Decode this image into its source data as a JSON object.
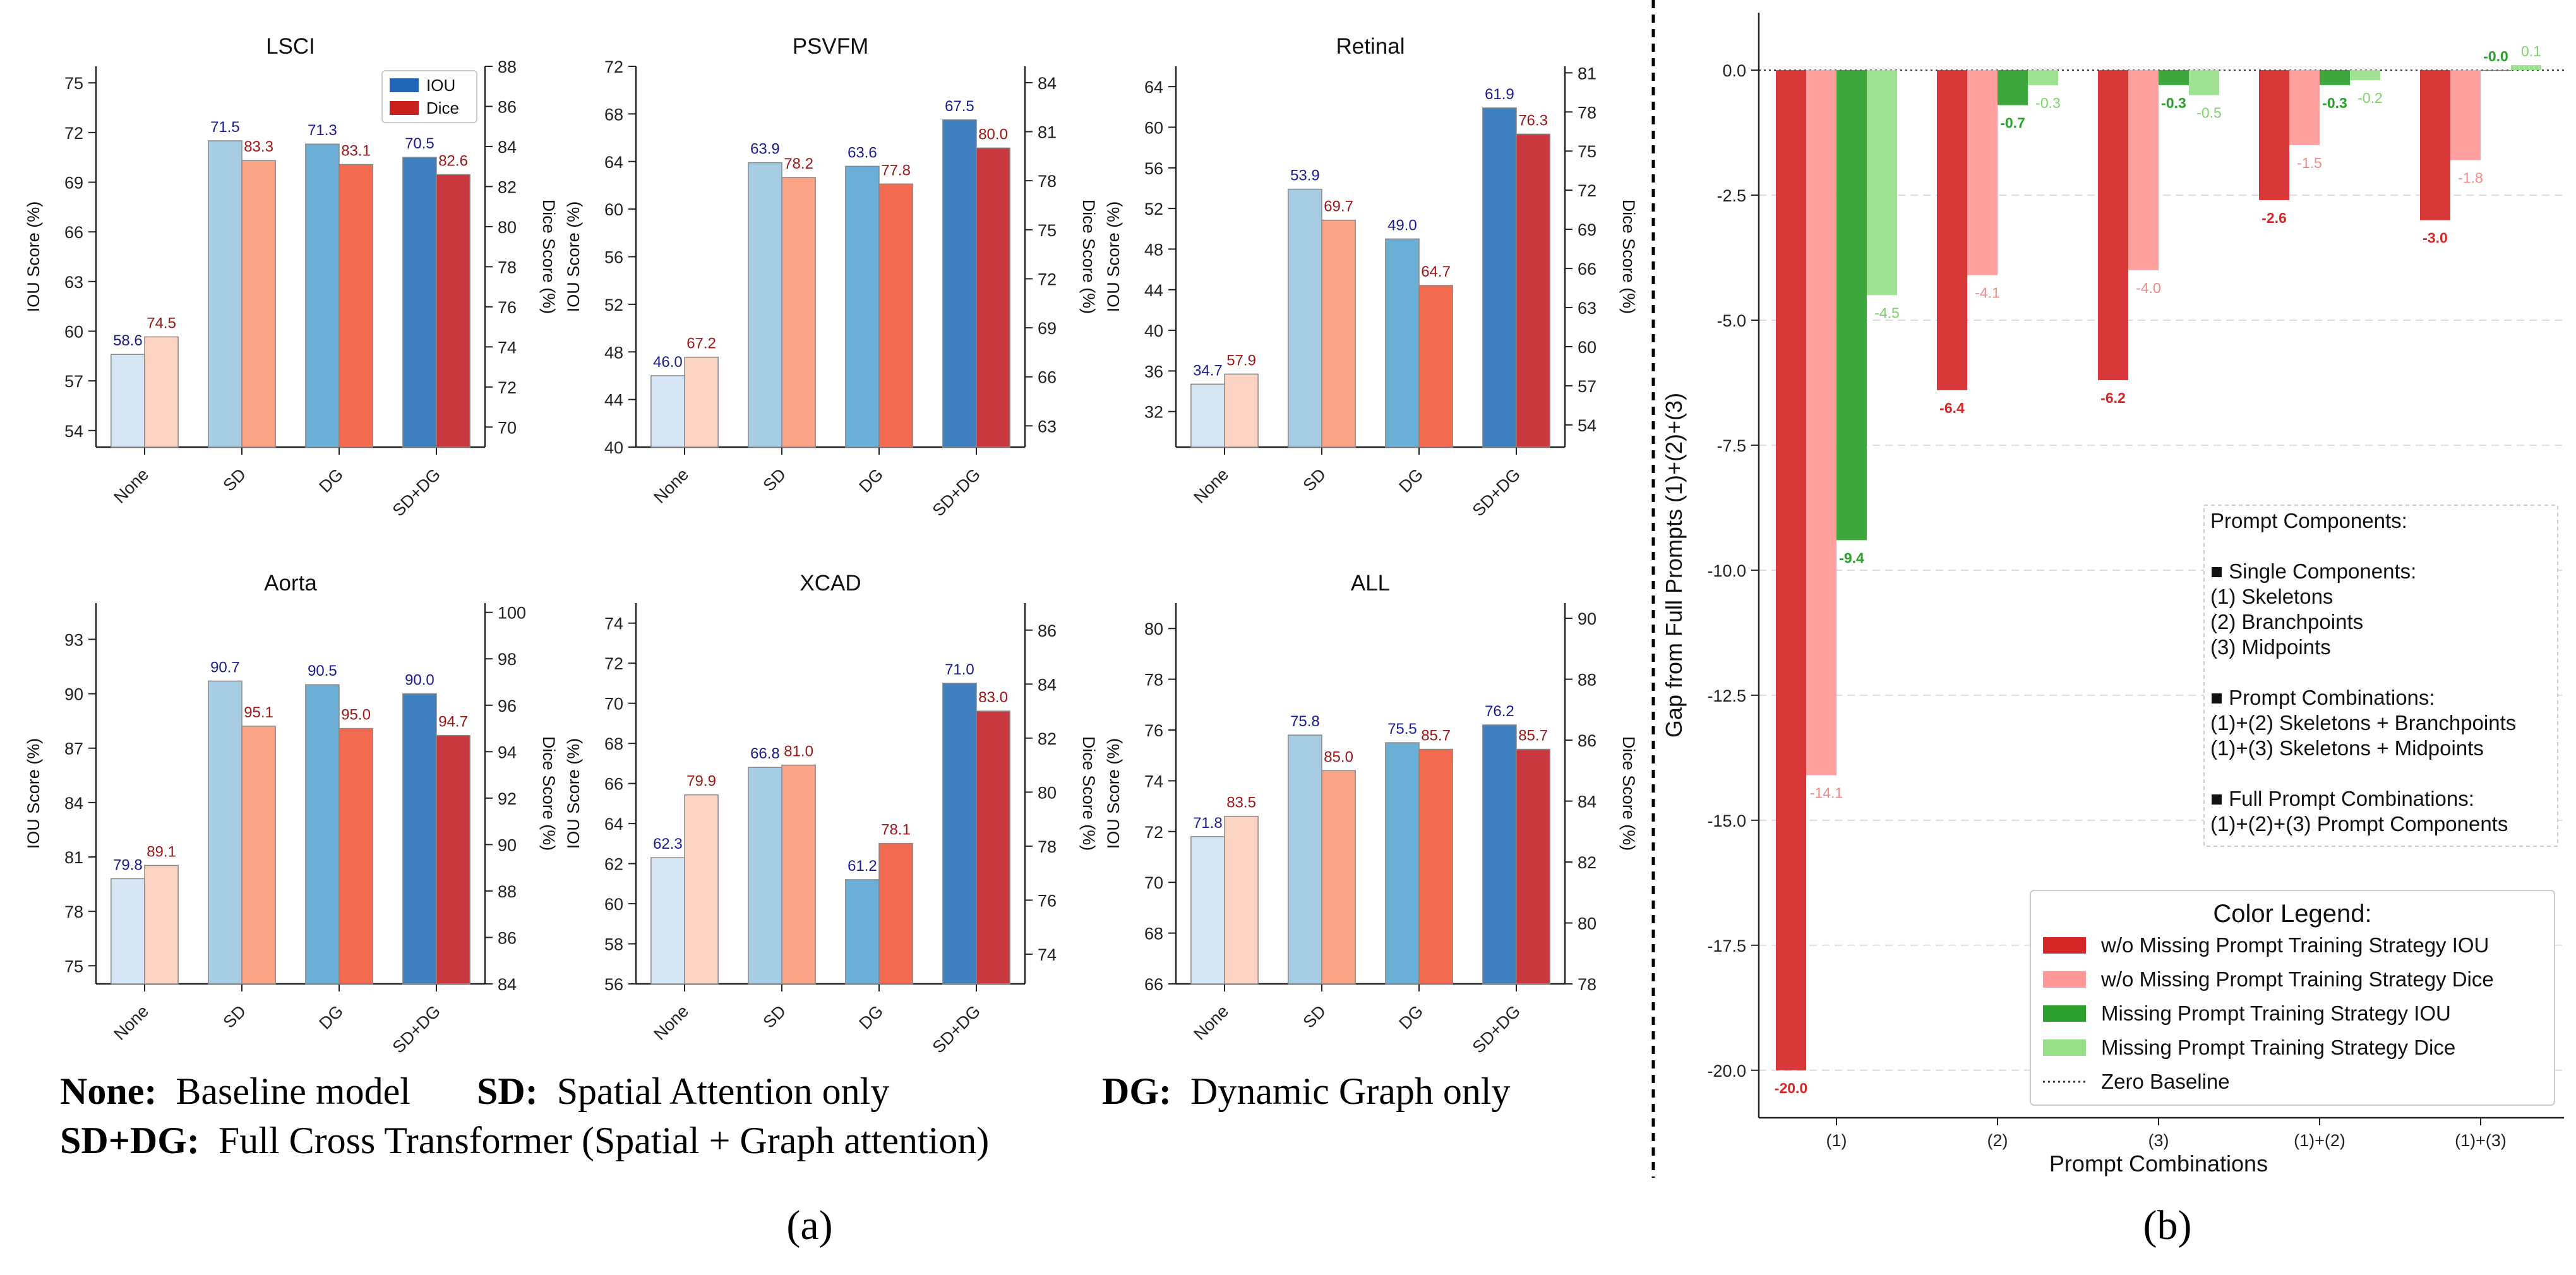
{
  "figure_labels": {
    "a": "(a)",
    "b": "(b)"
  },
  "caption": {
    "none": {
      "key": "None:",
      "desc": "Baseline model"
    },
    "sd": {
      "key": "SD:",
      "desc": "Spatial Attention only"
    },
    "dg": {
      "key": "DG:",
      "desc": "Dynamic Graph only"
    },
    "sddg": {
      "key": "SD+DG:",
      "desc": "Full Cross Transformer (Spatial + Graph attention)"
    }
  },
  "colors": {
    "iou": [
      "#d6e6f4",
      "#a6cde3",
      "#6baed6",
      "#3f7fbf"
    ],
    "dice": [
      "#fdd3c3",
      "#fca488",
      "#f26a50",
      "#c9373f"
    ],
    "iou_label": "#1b1b8f",
    "dice_label": "#9c1616",
    "gap_iou_a": "#d62728",
    "gap_dice_a": "#ff9896",
    "gap_iou_b": "#2ca02c",
    "gap_dice_b": "#98df8a",
    "legend_iou": "#1f67b4",
    "legend_dice": "#c81e1e"
  },
  "chart_data": [
    {
      "type": "bar",
      "title": "LSCI",
      "categories": [
        "None",
        "SD",
        "DG",
        "SD+DG"
      ],
      "ylabel": "IOU Score (%)",
      "ylabel_right": "Dice Score (%)",
      "ylim": [
        53,
        76
      ],
      "yticks": [
        "54",
        "57",
        "60",
        "63",
        "66",
        "69",
        "72",
        "75"
      ],
      "ylim_right": [
        69,
        88
      ],
      "yticks_right": [
        "70",
        "72",
        "74",
        "76",
        "78",
        "80",
        "82",
        "84",
        "86",
        "88"
      ],
      "series": [
        {
          "name": "IOU",
          "axis": "left",
          "values": [
            58.6,
            71.5,
            71.3,
            70.5
          ],
          "labels": [
            "58.6",
            "71.5",
            "71.3",
            "70.5"
          ]
        },
        {
          "name": "Dice",
          "axis": "right",
          "values": [
            74.5,
            83.3,
            83.1,
            82.6
          ],
          "labels": [
            "74.5",
            "83.3",
            "83.1",
            "82.6"
          ]
        }
      ],
      "legend": {
        "position": "top-right",
        "entries": [
          "IOU",
          "Dice"
        ]
      }
    },
    {
      "type": "bar",
      "title": "PSVFM",
      "categories": [
        "None",
        "SD",
        "DG",
        "SD+DG"
      ],
      "ylabel": "IOU Score (%)",
      "ylabel_right": "Dice Score (%)",
      "ylim": [
        40,
        72
      ],
      "yticks": [
        "40",
        "44",
        "48",
        "52",
        "56",
        "60",
        "64",
        "68",
        "72"
      ],
      "ylim_right": [
        61.7,
        85
      ],
      "yticks_right": [
        "63",
        "66",
        "69",
        "72",
        "75",
        "78",
        "81",
        "84"
      ],
      "series": [
        {
          "name": "IOU",
          "axis": "left",
          "values": [
            46.0,
            63.9,
            63.6,
            67.5
          ],
          "labels": [
            "46.0",
            "63.9",
            "63.6",
            "67.5"
          ]
        },
        {
          "name": "Dice",
          "axis": "right",
          "values": [
            67.2,
            78.2,
            77.8,
            80.0
          ],
          "labels": [
            "67.2",
            "78.2",
            "77.8",
            "80.0"
          ]
        }
      ]
    },
    {
      "type": "bar",
      "title": "Retinal",
      "categories": [
        "None",
        "SD",
        "DG",
        "SD+DG"
      ],
      "ylabel": "IOU Score (%)",
      "ylabel_right": "Dice Score (%)",
      "ylim": [
        28.5,
        66
      ],
      "yticks": [
        "32",
        "36",
        "40",
        "44",
        "48",
        "52",
        "56",
        "60",
        "64"
      ],
      "ylim_right": [
        52.3,
        81.5
      ],
      "yticks_right": [
        "54",
        "57",
        "60",
        "63",
        "66",
        "69",
        "72",
        "75",
        "78",
        "81"
      ],
      "series": [
        {
          "name": "IOU",
          "axis": "left",
          "values": [
            34.7,
            53.9,
            49.0,
            61.9
          ],
          "labels": [
            "34.7",
            "53.9",
            "49.0",
            "61.9"
          ]
        },
        {
          "name": "Dice",
          "axis": "right",
          "values": [
            57.9,
            69.7,
            64.7,
            76.3
          ],
          "labels": [
            "57.9",
            "69.7",
            "64.7",
            "76.3"
          ]
        }
      ]
    },
    {
      "type": "bar",
      "title": "Aorta",
      "categories": [
        "None",
        "SD",
        "DG",
        "SD+DG"
      ],
      "ylabel": "IOU Score (%)",
      "ylabel_right": "Dice Score (%)",
      "ylim": [
        74,
        95
      ],
      "yticks": [
        "75",
        "78",
        "81",
        "84",
        "87",
        "90",
        "93"
      ],
      "ylim_right": [
        84,
        100.4
      ],
      "yticks_right": [
        "84",
        "86",
        "88",
        "90",
        "92",
        "94",
        "96",
        "98",
        "100"
      ],
      "series": [
        {
          "name": "IOU",
          "axis": "left",
          "values": [
            79.8,
            90.7,
            90.5,
            90.0
          ],
          "labels": [
            "79.8",
            "90.7",
            "90.5",
            "90.0"
          ]
        },
        {
          "name": "Dice",
          "axis": "right",
          "values": [
            89.1,
            95.1,
            95.0,
            94.7
          ],
          "labels": [
            "89.1",
            "95.1",
            "95.0",
            "94.7"
          ]
        }
      ]
    },
    {
      "type": "bar",
      "title": "XCAD",
      "categories": [
        "None",
        "SD",
        "DG",
        "SD+DG"
      ],
      "ylabel": "IOU Score (%)",
      "ylabel_right": "Dice Score (%)",
      "ylim": [
        56,
        75
      ],
      "yticks": [
        "56",
        "58",
        "60",
        "62",
        "64",
        "66",
        "68",
        "70",
        "72",
        "74"
      ],
      "ylim_right": [
        72.9,
        87
      ],
      "yticks_right": [
        "74",
        "76",
        "78",
        "80",
        "82",
        "84",
        "86"
      ],
      "series": [
        {
          "name": "IOU",
          "axis": "left",
          "values": [
            62.3,
            66.8,
            61.2,
            71.0
          ],
          "labels": [
            "62.3",
            "66.8",
            "61.2",
            "71.0"
          ]
        },
        {
          "name": "Dice",
          "axis": "right",
          "values": [
            79.9,
            81.0,
            78.1,
            83.0
          ],
          "labels": [
            "79.9",
            "81.0",
            "78.1",
            "83.0"
          ]
        }
      ]
    },
    {
      "type": "bar",
      "title": "ALL",
      "categories": [
        "None",
        "SD",
        "DG",
        "SD+DG"
      ],
      "ylabel": "IOU Score (%)",
      "ylabel_right": "Dice Score (%)",
      "ylim": [
        66,
        81
      ],
      "yticks": [
        "66",
        "68",
        "70",
        "72",
        "74",
        "76",
        "78",
        "80"
      ],
      "ylim_right": [
        78,
        90.5
      ],
      "yticks_right": [
        "78",
        "80",
        "82",
        "84",
        "86",
        "88",
        "90"
      ],
      "series": [
        {
          "name": "IOU",
          "axis": "left",
          "values": [
            71.8,
            75.8,
            75.5,
            76.2
          ],
          "labels": [
            "71.8",
            "75.8",
            "75.5",
            "76.2"
          ]
        },
        {
          "name": "Dice",
          "axis": "right",
          "values": [
            83.5,
            85.0,
            85.7,
            85.7
          ],
          "labels": [
            "83.5",
            "85.0",
            "85.7",
            "85.7"
          ]
        }
      ]
    },
    {
      "type": "bar",
      "title": "",
      "categories": [
        "(1)",
        "(2)",
        "(3)",
        "(1)+(2)",
        "(1)+(3)"
      ],
      "xlabel": "Prompt Combinations",
      "ylabel": "Gap from Full Prompts (1)+(2)+(3)",
      "ylim": [
        -20.95,
        1.15
      ],
      "yticks": [
        "0.0",
        "-2.5",
        "-5.0",
        "-7.5",
        "-10.0",
        "-12.5",
        "-15.0",
        "-17.5",
        "-20.0"
      ],
      "ytick_values": [
        0,
        -2.5,
        -5,
        -7.5,
        -10,
        -12.5,
        -15,
        -17.5,
        -20
      ],
      "grid": true,
      "series": [
        {
          "name": "w/o Missing Prompt Training Strategy IOU",
          "values": [
            -20.0,
            -6.4,
            -6.2,
            -2.6,
            -3.0
          ],
          "labels": [
            "-20.0",
            "-6.4",
            "-6.2",
            "-2.6",
            "-3.0"
          ]
        },
        {
          "name": "w/o Missing Prompt Training Strategy Dice",
          "values": [
            -14.1,
            -4.1,
            -4.0,
            -1.5,
            -1.8
          ],
          "labels": [
            "-14.1",
            "-4.1",
            "-4.0",
            "-1.5",
            "-1.8"
          ]
        },
        {
          "name": "Missing Prompt Training Strategy IOU",
          "values": [
            -9.4,
            -0.7,
            -0.3,
            -0.3,
            -0.0
          ],
          "labels": [
            "-9.4",
            "-0.7",
            "-0.3",
            "-0.3",
            "-0.0"
          ]
        },
        {
          "name": "Missing Prompt Training Strategy Dice",
          "values": [
            -4.5,
            -0.3,
            -0.5,
            -0.2,
            0.1
          ],
          "labels": [
            "-4.5",
            "-0.3",
            "-0.5",
            "-0.2",
            "0.1"
          ]
        }
      ],
      "info_box": [
        "Prompt Components:",
        "",
        "■ Single Components:",
        " (1) Skeletons",
        " (2) Branchpoints",
        " (3) Midpoints",
        "",
        "■ Prompt Combinations:",
        " (1)+(2) Skeletons + Branchpoints",
        " (1)+(3) Skeletons + Midpoints",
        "",
        "■ Full Prompt Combinations:",
        " (1)+(2)+(3) Prompt Components"
      ],
      "legend": {
        "title": "Color Legend:",
        "entries": [
          "w/o Missing Prompt Training Strategy IOU",
          "w/o Missing Prompt Training Strategy Dice",
          "Missing Prompt Training Strategy IOU",
          "Missing Prompt Training Strategy Dice",
          "Zero Baseline"
        ]
      }
    }
  ]
}
